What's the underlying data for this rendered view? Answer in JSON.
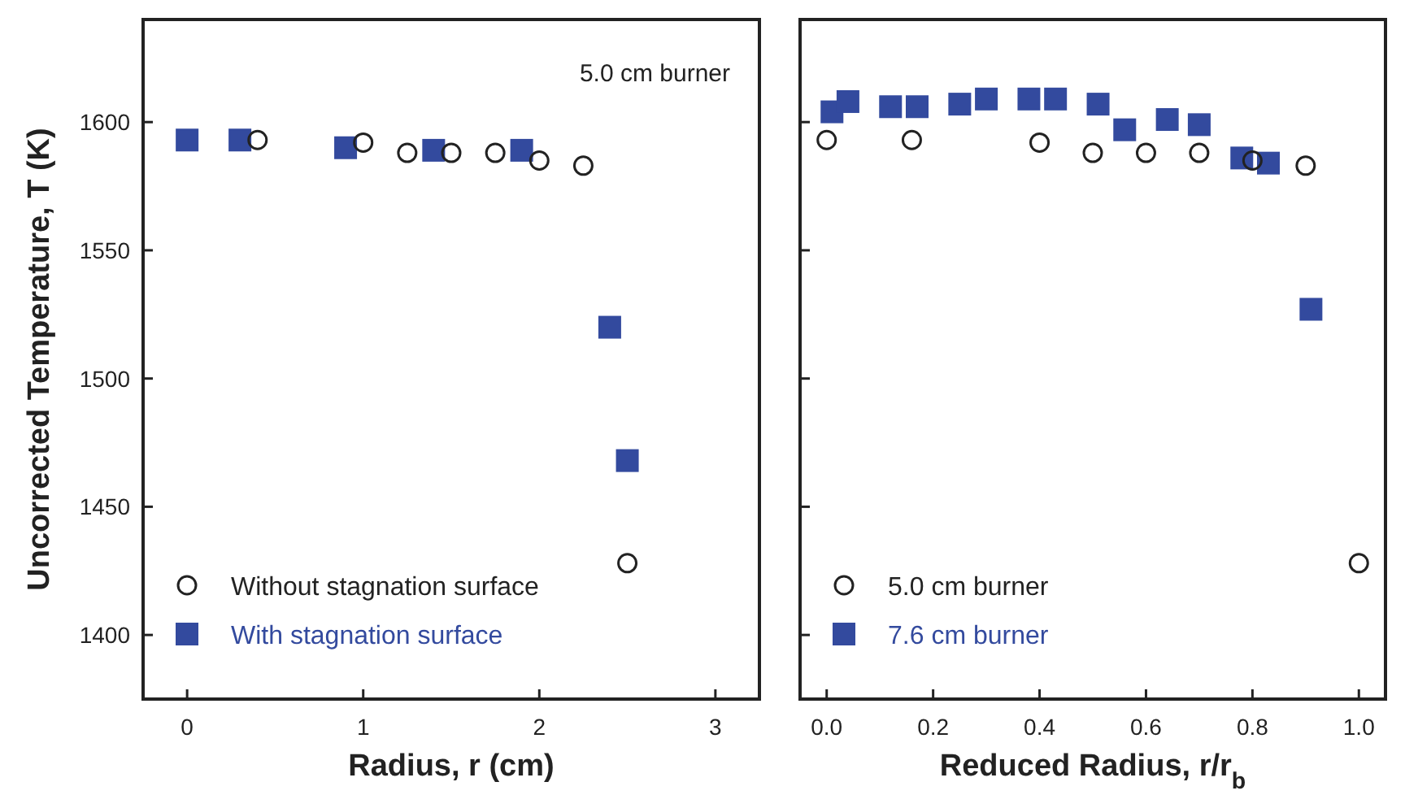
{
  "chart_data": [
    {
      "type": "scatter",
      "xlabel": "Radius, r (cm)",
      "ylabel": "Uncorrected Temperature, T (K)",
      "xlim": [
        -0.25,
        3.25
      ],
      "xticks": [
        0,
        1,
        2,
        3
      ],
      "ylim": [
        1375,
        1640
      ],
      "yticks": [
        1400,
        1450,
        1500,
        1550,
        1600
      ],
      "grid": false,
      "legend": "bottom left",
      "annotations": [
        "5.0 cm burner"
      ],
      "series": [
        {
          "name": "Without stagnation surface",
          "color": "#222222",
          "marker": "circle",
          "x": [
            0.4,
            1.0,
            1.25,
            1.5,
            1.75,
            2.0,
            2.25,
            2.5
          ],
          "values": [
            1593,
            1592,
            1588,
            1588,
            1588,
            1585,
            1583,
            1428
          ]
        },
        {
          "name": "With stagnation surface",
          "color": "#334a9e",
          "marker": "square",
          "x": [
            0,
            0.3,
            0.9,
            1.4,
            1.9,
            2.4,
            2.5
          ],
          "values": [
            1593,
            1593,
            1590,
            1589,
            1589,
            1520,
            1468
          ]
        }
      ]
    },
    {
      "type": "scatter",
      "xlabel": "Reduced Radius, r/r$_{b}$",
      "xlim": [
        -0.05,
        1.05
      ],
      "xticks": [
        {
          "value": 0,
          "label": "0.0"
        },
        0.2,
        0.4,
        0.6,
        0.8,
        {
          "value": 1,
          "label": "1.0"
        }
      ],
      "ylim": [
        1375,
        1640
      ],
      "yticks": [
        1400,
        1450,
        1500,
        1550,
        1600
      ],
      "tick_labels": "x",
      "grid": false,
      "legend": "bottom left",
      "series": [
        {
          "name": "5.0 cm burner",
          "color": "#222222",
          "marker": "circle",
          "x": [
            0,
            0.16,
            0.4,
            0.5,
            0.6,
            0.7,
            0.8,
            0.9,
            1.0
          ],
          "values": [
            1593,
            1593,
            1592,
            1588,
            1588,
            1588,
            1585,
            1583,
            1428
          ]
        },
        {
          "name": "7.6 cm burner",
          "color": "#334a9e",
          "marker": "square",
          "x": [
            0.01,
            0.04,
            0.12,
            0.17,
            0.25,
            0.3,
            0.38,
            0.43,
            0.51,
            0.56,
            0.64,
            0.7,
            0.78,
            0.83,
            0.91
          ],
          "values": [
            1604,
            1608,
            1606,
            1606,
            1607,
            1609,
            1609,
            1609,
            1607,
            1597,
            1601,
            1599,
            1586,
            1584,
            1527
          ]
        }
      ]
    }
  ]
}
